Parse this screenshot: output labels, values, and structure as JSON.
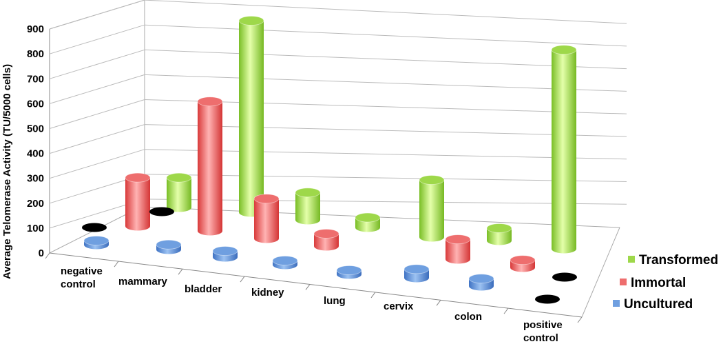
{
  "chart_data": {
    "type": "bar",
    "categories": [
      "negative control",
      "mammary",
      "bladder",
      "kidney",
      "lung",
      "cervix",
      "colon",
      "positive control"
    ],
    "category_lines": [
      [
        "negative",
        "control"
      ],
      [
        "mammary"
      ],
      [
        "bladder"
      ],
      [
        "kidney"
      ],
      [
        "lung"
      ],
      [
        "cervix"
      ],
      [
        "colon"
      ],
      [
        "positive",
        "control"
      ]
    ],
    "ylabel": "Average Telomerase Activity   (TU/5000 cells)",
    "ylim": [
      0,
      900
    ],
    "yticks": [
      "0",
      "100",
      "200",
      "300",
      "400",
      "500",
      "600",
      "700",
      "800",
      "900"
    ],
    "grid": true,
    "legend_position": "bottom-right",
    "legend_order": [
      "Transformed",
      "Immortal",
      "Uncultured"
    ],
    "series": [
      {
        "name": "Uncultured",
        "color": "#6f9fe0",
        "values": [
          0,
          20,
          25,
          15,
          0,
          35,
          30,
          null
        ]
      },
      {
        "name": "Immortal",
        "color": "#ee6e6e",
        "values": [
          195,
          520,
          160,
          50,
          null,
          80,
          30,
          null
        ]
      },
      {
        "name": "Transformed",
        "color": "#9ed84a",
        "values": [
          120,
          770,
          110,
          40,
          230,
          50,
          800,
          null
        ]
      }
    ],
    "control_markers_color": "#000000"
  }
}
